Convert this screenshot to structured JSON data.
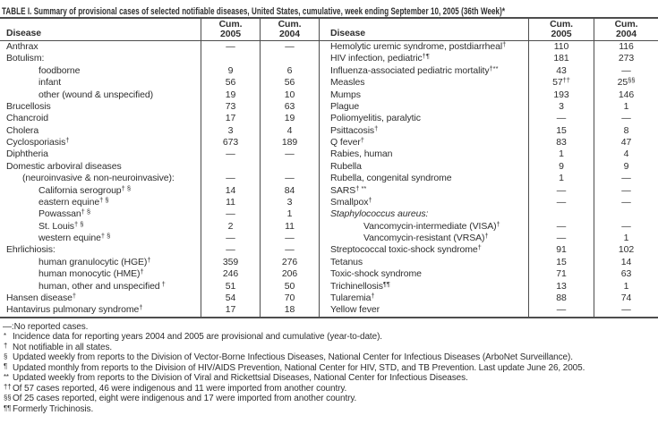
{
  "title": "TABLE I. Summary of provisional cases of selected notifiable diseases, United States, cumulative, week ending September 10, 2005 (36th Week)*",
  "table": {
    "header": {
      "disease": "Disease",
      "cum": "Cum.",
      "y2005": "2005",
      "y2004": "2004"
    },
    "left_rows": [
      {
        "d": "Anthrax",
        "v5": "—",
        "v4": "—"
      },
      {
        "d": "Botulism:"
      },
      {
        "d": "foodborne",
        "i": 2,
        "v5": "9",
        "v4": "6"
      },
      {
        "d": "infant",
        "i": 2,
        "v5": "56",
        "v4": "56"
      },
      {
        "d": "other (wound & unspecified)",
        "i": 2,
        "v5": "19",
        "v4": "10"
      },
      {
        "d": "Brucellosis",
        "v5": "73",
        "v4": "63"
      },
      {
        "d": "Chancroid",
        "v5": "17",
        "v4": "19"
      },
      {
        "d": "Cholera",
        "v5": "3",
        "v4": "4"
      },
      {
        "d": "Cyclosporiasis",
        "sup": "†",
        "v5": "673",
        "v4": "189"
      },
      {
        "d": "Diphtheria",
        "v5": "—",
        "v4": "—"
      },
      {
        "d": "Domestic arboviral diseases"
      },
      {
        "d": "(neuroinvasive & non-neuroinvasive):",
        "i": 1,
        "v5": "—",
        "v4": "—"
      },
      {
        "d": "California serogroup",
        "sup": "† §",
        "i": 2,
        "v5": "14",
        "v4": "84"
      },
      {
        "d": "eastern equine",
        "sup": "† §",
        "i": 2,
        "v5": "11",
        "v4": "3"
      },
      {
        "d": "Powassan",
        "sup": "† §",
        "i": 2,
        "v5": "—",
        "v4": "1"
      },
      {
        "d": "St. Louis",
        "sup": "† §",
        "i": 2,
        "v5": "2",
        "v4": "11"
      },
      {
        "d": "western equine",
        "sup": "† §",
        "i": 2,
        "v5": "—",
        "v4": "—"
      },
      {
        "d": "Ehrlichiosis:",
        "v5": "—",
        "v4": "—"
      },
      {
        "d": "human granulocytic (HGE)",
        "sup": "†",
        "i": 2,
        "v5": "359",
        "v4": "276"
      },
      {
        "d": "human monocytic (HME)",
        "sup": "†",
        "i": 2,
        "v5": "246",
        "v4": "206"
      },
      {
        "d": "human, other and unspecified",
        "sup": " †",
        "i": 2,
        "v5": "51",
        "v4": "50"
      },
      {
        "d": "Hansen disease",
        "sup": "†",
        "v5": "54",
        "v4": "70"
      },
      {
        "d": "Hantavirus pulmonary syndrome",
        "sup": "†",
        "v5": "17",
        "v4": "18"
      }
    ],
    "right_rows": [
      {
        "d": "Hemolytic uremic syndrome, postdiarrheal",
        "sup": "†",
        "v5": "110",
        "v4": "116"
      },
      {
        "d": "HIV infection, pediatric",
        "sup": "†¶",
        "v5": "181",
        "v4": "273"
      },
      {
        "d": "Influenza-associated pediatric mortality",
        "sup": "†**",
        "v5": "43",
        "v4": "—"
      },
      {
        "d": "Measles",
        "v5": "57",
        "s5": "††",
        "v4": "25",
        "s4": "§§"
      },
      {
        "d": "Mumps",
        "v5": "193",
        "v4": "146"
      },
      {
        "d": "Plague",
        "v5": "3",
        "v4": "1"
      },
      {
        "d": "Poliomyelitis, paralytic",
        "v5": "—",
        "v4": "—"
      },
      {
        "d": "Psittacosis",
        "sup": "†",
        "v5": "15",
        "v4": "8"
      },
      {
        "d": "Q fever",
        "sup": "†",
        "v5": "83",
        "v4": "47"
      },
      {
        "d": "Rabies, human",
        "v5": "1",
        "v4": "4"
      },
      {
        "d": "Rubella",
        "v5": "9",
        "v4": "9"
      },
      {
        "d": "Rubella, congenital syndrome",
        "v5": "1",
        "v4": "—"
      },
      {
        "d": "SARS",
        "sup": "† **",
        "v5": "—",
        "v4": "—"
      },
      {
        "d": "Smallpox",
        "sup": "†",
        "v5": "—",
        "v4": "—"
      },
      {
        "d": "Staphylococcus aureus:",
        "it": true
      },
      {
        "d": "Vancomycin-intermediate (VISA)",
        "sup": "†",
        "i": 2,
        "v5": "—",
        "v4": "—"
      },
      {
        "d": "Vancomycin-resistant (VRSA)",
        "sup": "†",
        "i": 2,
        "v5": "—",
        "v4": "1"
      },
      {
        "d": "Streptococcal toxic-shock syndrome",
        "sup": "†",
        "v5": "91",
        "v4": "102"
      },
      {
        "d": "Tetanus",
        "v5": "15",
        "v4": "14"
      },
      {
        "d": "Toxic-shock syndrome",
        "v5": "71",
        "v4": "63"
      },
      {
        "d": "Trichinellosis",
        "sup": "¶¶",
        "v5": "13",
        "v4": "1"
      },
      {
        "d": "Tularemia",
        "sup": "†",
        "v5": "88",
        "v4": "74"
      },
      {
        "d": "Yellow fever",
        "v5": "—",
        "v4": "—"
      }
    ]
  },
  "footnotes": [
    {
      "marker": "—:",
      "raised": false,
      "text": "No reported cases."
    },
    {
      "marker": "*",
      "raised": true,
      "text": "Incidence data for reporting years 2004 and 2005 are provisional and cumulative (year-to-date)."
    },
    {
      "marker": "†",
      "raised": true,
      "text": "Not notifiable in all states."
    },
    {
      "marker": "§",
      "raised": true,
      "text": "Updated weekly from reports to the Division of Vector-Borne Infectious Diseases, National Center for Infectious Diseases (ArboNet Surveillance)."
    },
    {
      "marker": "¶",
      "raised": true,
      "text": "Updated monthly from reports to the Division of HIV/AIDS Prevention, National Center for HIV, STD, and TB Prevention. Last update June 26, 2005."
    },
    {
      "marker": "**",
      "raised": true,
      "text": "Updated weekly from reports to the Division of Viral and Rickettsial Diseases, National Center for Infectious Diseases."
    },
    {
      "marker": "††",
      "raised": true,
      "text": "Of 57 cases reported, 46 were indigenous and 11 were imported from another country."
    },
    {
      "marker": "§§",
      "raised": true,
      "text": "Of 25 cases reported, eight were indigenous and 17 were imported from another country."
    },
    {
      "marker": "¶¶",
      "raised": true,
      "text": "Formerly Trichinosis."
    }
  ]
}
